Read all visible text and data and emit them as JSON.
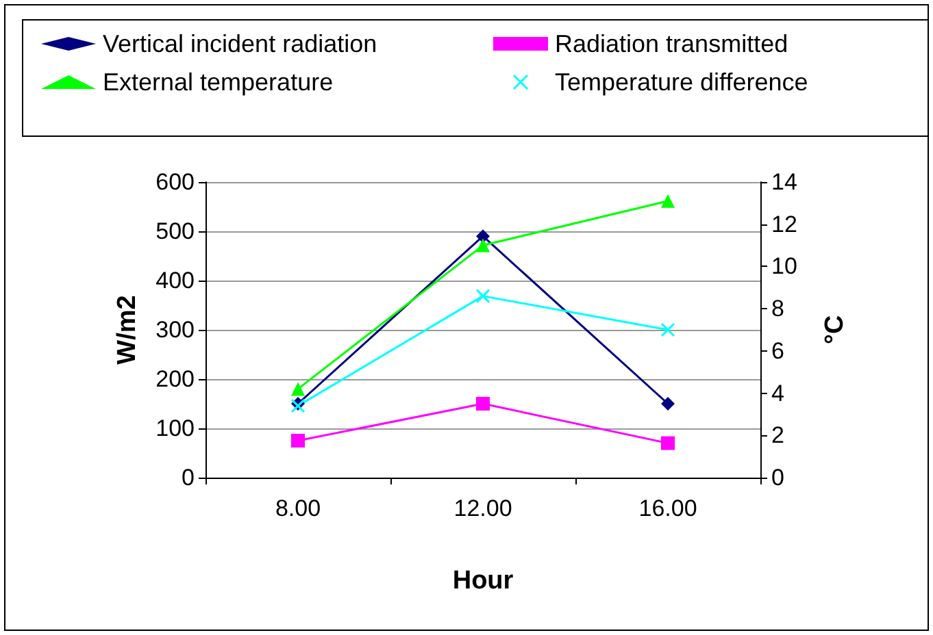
{
  "chart_data": {
    "type": "line",
    "xlabel": "Hour",
    "ylabel": "W/m2",
    "y2label": "°C",
    "categories": [
      "8.00",
      "12.00",
      "16.00"
    ],
    "series": [
      {
        "name": "Vertical incident radiation",
        "color": "#000080",
        "marker": "diamond",
        "values": [
          150,
          490,
          150
        ]
      },
      {
        "name": "Radiation transmitted",
        "color": "#ff00ff",
        "marker": "square",
        "values": [
          75,
          150,
          70
        ]
      },
      {
        "name": "External temperature",
        "color": "#00ff00",
        "marker": "triangle",
        "axis": "y2",
        "values": [
          4.2,
          11,
          13.1
        ]
      },
      {
        "name": "Temperature difference",
        "color": "#00ffff",
        "marker": "cross",
        "axis": "y2",
        "values": [
          3.4,
          8.6,
          7.0
        ]
      }
    ],
    "ylim": [
      0,
      600
    ],
    "yticks": [
      0,
      100,
      200,
      300,
      400,
      500,
      600
    ],
    "y2lim": [
      0,
      14
    ],
    "y2ticks": [
      0,
      2,
      4,
      6,
      8,
      10,
      12,
      14
    ],
    "grid": "y",
    "legend": "top"
  }
}
